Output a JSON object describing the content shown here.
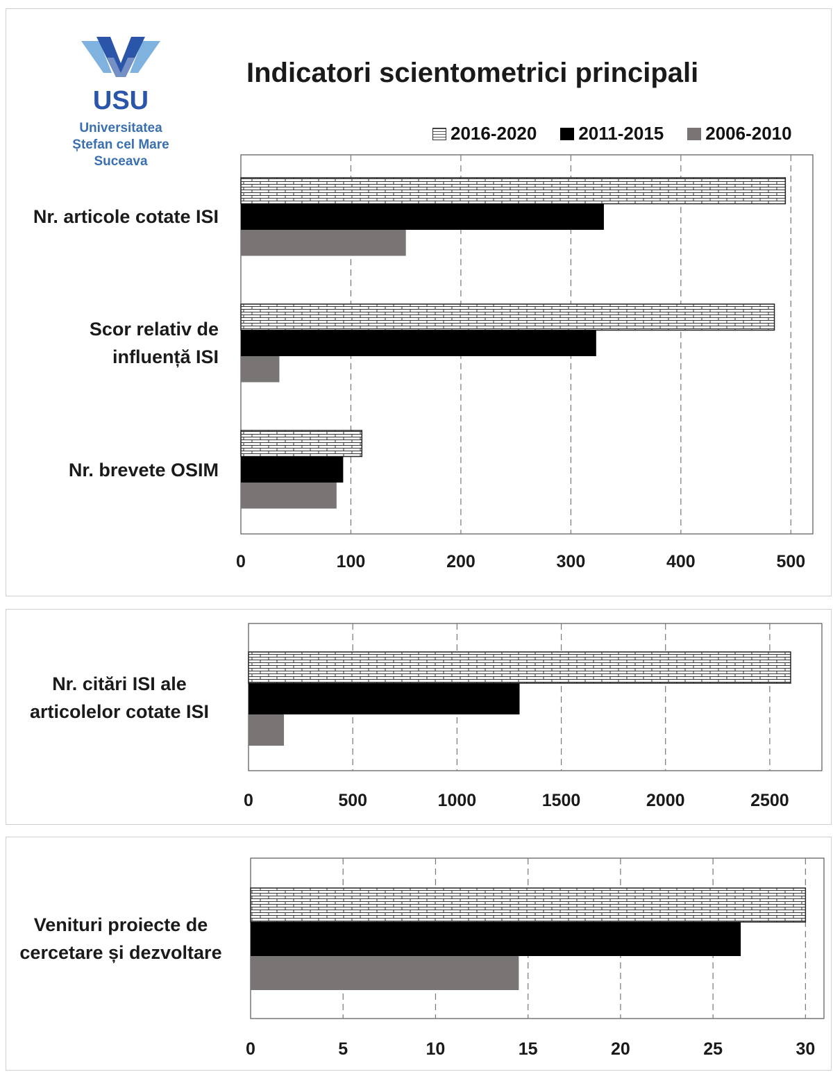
{
  "header": {
    "title": "Indicatori scientometrici principali",
    "logo_text": "USU",
    "university_lines": [
      "Universitatea",
      "Ștefan cel Mare",
      "Suceava"
    ]
  },
  "legend": [
    {
      "label": "2016-2020",
      "pattern": "brick",
      "color": "#ffffff"
    },
    {
      "label": "2011-2015",
      "pattern": "solid",
      "color": "#000000"
    },
    {
      "label": "2006-2010",
      "pattern": "solid",
      "color": "#7a7575"
    }
  ],
  "chart_data": [
    {
      "type": "bar",
      "orientation": "horizontal",
      "title": "Indicatori scientometrici principali",
      "categories": [
        "Nr. articole cotate ISI",
        "Scor relativ de influență ISI",
        "Nr. brevete OSIM"
      ],
      "series": [
        {
          "name": "2016-2020",
          "values": [
            495,
            485,
            110
          ]
        },
        {
          "name": "2011-2015",
          "values": [
            330,
            323,
            93
          ]
        },
        {
          "name": "2006-2010",
          "values": [
            150,
            35,
            87
          ]
        }
      ],
      "xlim": [
        0,
        520
      ],
      "xticks": [
        0,
        100,
        200,
        300,
        400,
        500
      ],
      "grid": true,
      "legend_position": "top-right"
    },
    {
      "type": "bar",
      "orientation": "horizontal",
      "categories": [
        "Nr. citări ISI ale articolelor cotate ISI"
      ],
      "series": [
        {
          "name": "2016-2020",
          "values": [
            2600
          ]
        },
        {
          "name": "2011-2015",
          "values": [
            1300
          ]
        },
        {
          "name": "2006-2010",
          "values": [
            170
          ]
        }
      ],
      "xlim": [
        0,
        2750
      ],
      "xticks": [
        0,
        500,
        1000,
        1500,
        2000,
        2500
      ],
      "grid": true
    },
    {
      "type": "bar",
      "orientation": "horizontal",
      "categories": [
        "Venituri proiecte de cercetare și dezvoltare"
      ],
      "series": [
        {
          "name": "2016-2020",
          "values": [
            30
          ]
        },
        {
          "name": "2011-2015",
          "values": [
            26.5
          ]
        },
        {
          "name": "2006-2010",
          "values": [
            14.5
          ]
        }
      ],
      "xlim": [
        0,
        31
      ],
      "xticks": [
        0,
        5,
        10,
        15,
        20,
        25,
        30
      ],
      "grid": true
    }
  ],
  "labels": {
    "chart1": [
      [
        "Nr. articole cotate ISI"
      ],
      [
        "Scor relativ de",
        "influență ISI"
      ],
      [
        "Nr. brevete OSIM"
      ]
    ],
    "chart2": [
      [
        "Nr. citări ISI ale",
        "articolelor cotate ISI"
      ]
    ],
    "chart3": [
      [
        "Venituri proiecte de",
        "cercetare și dezvoltare"
      ]
    ]
  }
}
